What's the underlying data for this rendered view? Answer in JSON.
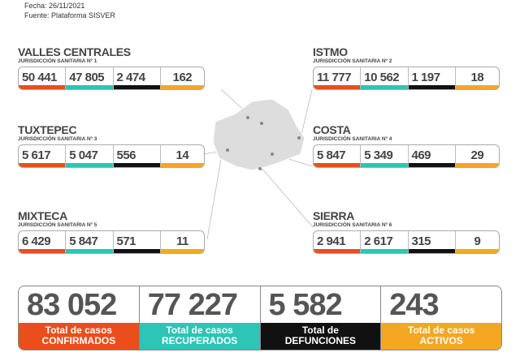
{
  "header": {
    "fecha": "Fecha: 26/11/2021",
    "fuente": "Fuente: Plataforma SISVER"
  },
  "colors": {
    "confirmados": "#e94e1b",
    "recuperados": "#2ec4b6",
    "defunciones": "#111111",
    "activos": "#f5a623"
  },
  "regions": [
    {
      "name": "VALLES CENTRALES",
      "sub": "JURISDICCIÓN SANITARIA Nº 1",
      "values": [
        "50 441",
        "47 805",
        "2 474",
        "162"
      ]
    },
    {
      "name": "ISTMO",
      "sub": "JURISDICCIÓN SANITARIA Nº 2",
      "values": [
        "11 777",
        "10 562",
        "1 197",
        "18"
      ]
    },
    {
      "name": "TUXTEPEC",
      "sub": "JURISDICCIÓN SANITARIA Nº 3",
      "values": [
        "5 617",
        "5 047",
        "556",
        "14"
      ]
    },
    {
      "name": "COSTA",
      "sub": "JURISDICCIÓN SANITARIA Nº 4",
      "values": [
        "5 847",
        "5 349",
        "469",
        "29"
      ]
    },
    {
      "name": "MIXTECA",
      "sub": "JURISDICCIÓN SANITARIA Nº 5",
      "values": [
        "6 429",
        "5 847",
        "571",
        "11"
      ]
    },
    {
      "name": "SIERRA",
      "sub": "JURISDICCIÓN SANITARIA Nº 6",
      "values": [
        "2 941",
        "2 617",
        "315",
        "9"
      ]
    }
  ],
  "totals": [
    {
      "value": "83 052",
      "l1": "Total de casos",
      "l2": "CONFIRMADOS"
    },
    {
      "value": "77 227",
      "l1": "Total de casos",
      "l2": "RECUPERADOS"
    },
    {
      "value": "5 582",
      "l1": "Total de",
      "l2": "DEFUNCIONES"
    },
    {
      "value": "243",
      "l1": "Total de casos",
      "l2": "ACTIVOS"
    }
  ]
}
